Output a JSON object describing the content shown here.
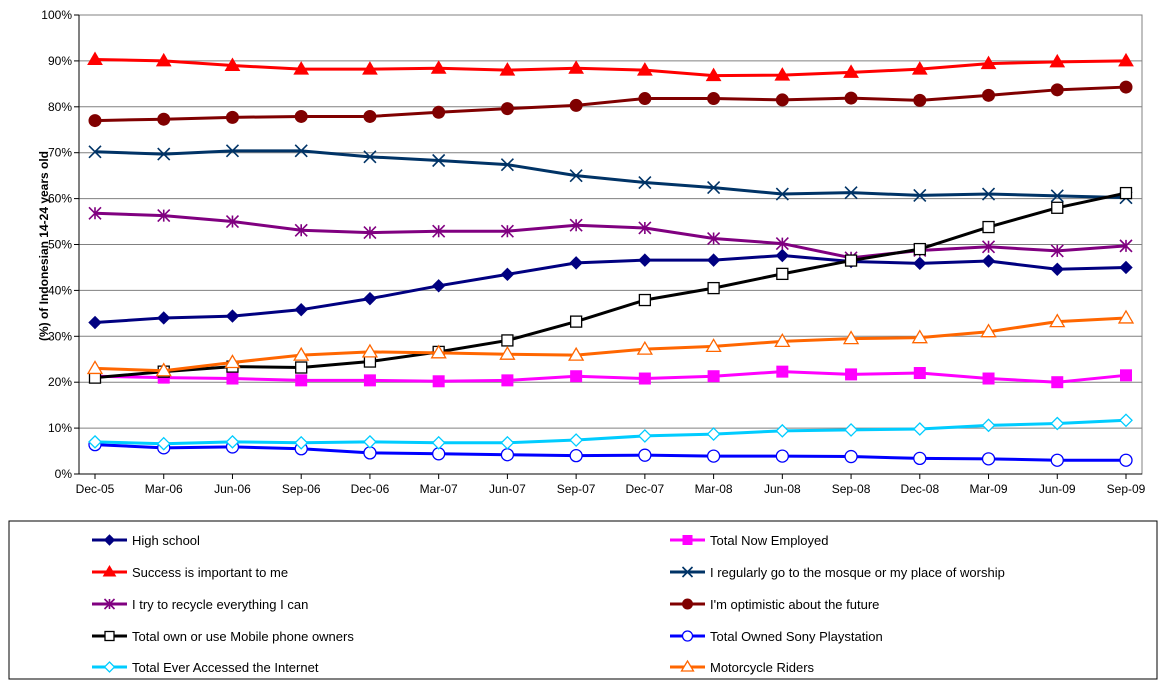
{
  "chart_data": {
    "type": "line",
    "title": "",
    "xlabel": "",
    "ylabel": "(%) of Indonesian 14-24 years old",
    "ylim": [
      0,
      100
    ],
    "yticks": [
      "0%",
      "10%",
      "20%",
      "30%",
      "40%",
      "50%",
      "60%",
      "70%",
      "80%",
      "90%",
      "100%"
    ],
    "grid": "horizontal",
    "legend_position": "bottom",
    "categories": [
      "Dec-05",
      "Mar-06",
      "Jun-06",
      "Sep-06",
      "Dec-06",
      "Mar-07",
      "Jun-07",
      "Sep-07",
      "Dec-07",
      "Mar-08",
      "Jun-08",
      "Sep-08",
      "Dec-08",
      "Mar-09",
      "Jun-09",
      "Sep-09"
    ],
    "series": [
      {
        "name": "High school",
        "color": "#000080",
        "marker": "diamond",
        "values": [
          33,
          34,
          34.4,
          35.8,
          38.2,
          41,
          43.5,
          46,
          46.6,
          46.6,
          47.6,
          46.3,
          45.9,
          46.4,
          44.6,
          45
        ]
      },
      {
        "name": "Total Now Employed",
        "color": "#FF00FF",
        "marker": "square",
        "values": [
          21.3,
          21,
          20.8,
          20.4,
          20.4,
          20.2,
          20.4,
          21.3,
          20.8,
          21.3,
          22.3,
          21.7,
          22,
          20.8,
          20,
          21.5
        ]
      },
      {
        "name": "Success is important to me",
        "color": "#FF0000",
        "marker": "triangle",
        "values": [
          90.3,
          90,
          89,
          88.2,
          88.2,
          88.4,
          88,
          88.4,
          88,
          86.8,
          86.9,
          87.5,
          88.2,
          89.4,
          89.8,
          90
        ]
      },
      {
        "name": "I regularly go to the mosque or my place of worship",
        "color": "#003366",
        "marker": "x",
        "values": [
          70.2,
          69.7,
          70.4,
          70.4,
          69.1,
          68.3,
          67.4,
          65,
          63.5,
          62.4,
          61,
          61.3,
          60.7,
          61,
          60.6,
          60.2
        ]
      },
      {
        "name": "I try to recycle everything I can",
        "color": "#800080",
        "marker": "star",
        "values": [
          56.8,
          56.3,
          55,
          53.1,
          52.6,
          52.9,
          52.9,
          54.2,
          53.6,
          51.3,
          50.2,
          47.1,
          48.7,
          49.5,
          48.6,
          49.7
        ]
      },
      {
        "name": "I'm optimistic about the future",
        "color": "#800000",
        "marker": "circle",
        "values": [
          77,
          77.3,
          77.7,
          77.9,
          77.9,
          78.8,
          79.6,
          80.3,
          81.8,
          81.8,
          81.5,
          81.9,
          81.4,
          82.5,
          83.7,
          84.3
        ]
      },
      {
        "name": "Total own or use Mobile phone owners",
        "color": "#000000",
        "marker": "open-square",
        "values": [
          21,
          22.3,
          23.4,
          23.2,
          24.5,
          26.6,
          29.1,
          33.2,
          37.9,
          40.5,
          43.6,
          46.5,
          49,
          53.8,
          58,
          61.2
        ]
      },
      {
        "name": "Total Owned Sony Playstation",
        "color": "#0000FF",
        "marker": "open-circle",
        "values": [
          6.4,
          5.7,
          5.9,
          5.5,
          4.6,
          4.4,
          4.2,
          4,
          4.1,
          3.9,
          3.9,
          3.8,
          3.4,
          3.3,
          3,
          3
        ]
      },
      {
        "name": "Total Ever Accessed the Internet",
        "color": "#00CCFF",
        "marker": "open-diamond",
        "values": [
          7,
          6.6,
          7,
          6.8,
          7,
          6.8,
          6.8,
          7.4,
          8.3,
          8.7,
          9.4,
          9.6,
          9.8,
          10.6,
          11,
          11.7
        ]
      },
      {
        "name": "Motorcycle Riders",
        "color": "#FF6600",
        "marker": "open-triangle",
        "values": [
          23,
          22.5,
          24.3,
          25.9,
          26.6,
          26.4,
          26.1,
          25.9,
          27.2,
          27.8,
          28.9,
          29.5,
          29.7,
          31,
          33.2,
          34
        ]
      }
    ]
  }
}
